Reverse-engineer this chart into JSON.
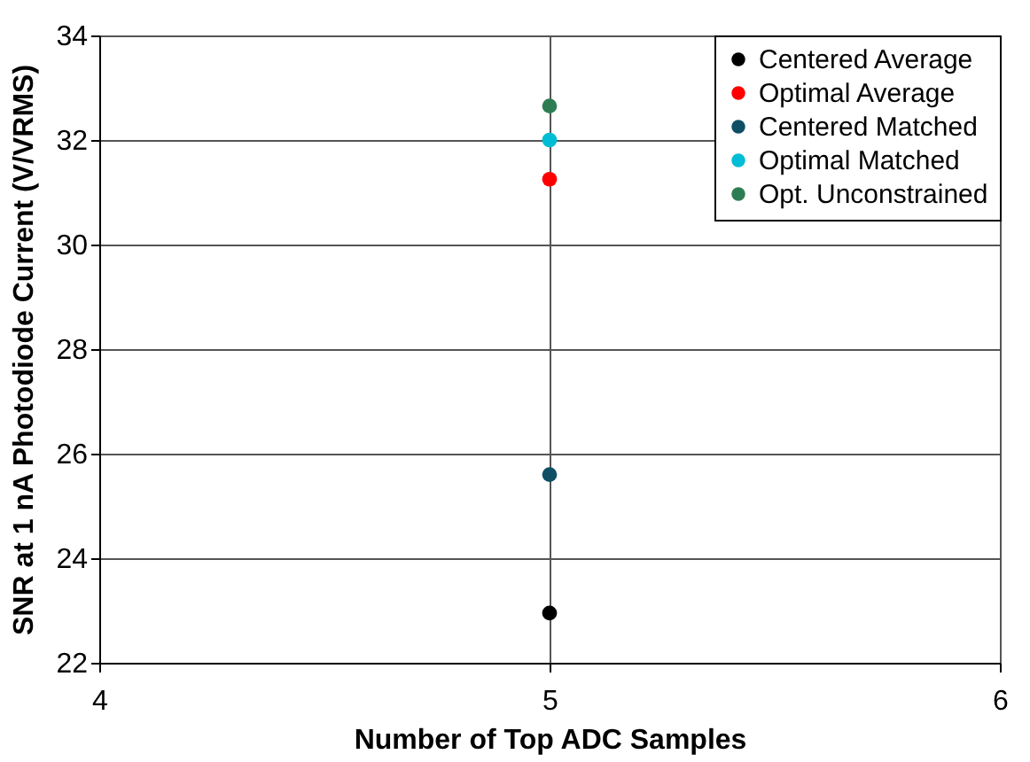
{
  "chart_data": {
    "type": "line",
    "xlabel": "Number of Top ADC Samples",
    "ylabel": "SNR at 1 nA Photodiode Current (V/VRMS)",
    "x": [
      5
    ],
    "series": [
      {
        "name": "Centered Average",
        "color": "#000000",
        "values": [
          22.95
        ]
      },
      {
        "name": "Optimal Average",
        "color": "#ff0000",
        "values": [
          31.25
        ]
      },
      {
        "name": "Centered Matched",
        "color": "#0f4f66",
        "values": [
          25.6
        ]
      },
      {
        "name": "Optimal Matched",
        "color": "#00bcd4",
        "values": [
          32.0
        ]
      },
      {
        "name": "Opt. Unconstrained",
        "color": "#2e7d52",
        "values": [
          32.65
        ]
      }
    ],
    "xlim": [
      4,
      6
    ],
    "xticks": [
      4,
      5,
      6
    ],
    "ylim": [
      22,
      34
    ],
    "yticks": [
      22,
      24,
      26,
      28,
      30,
      32,
      34
    ],
    "grid": true,
    "legend": "top right",
    "marker": "circle"
  }
}
